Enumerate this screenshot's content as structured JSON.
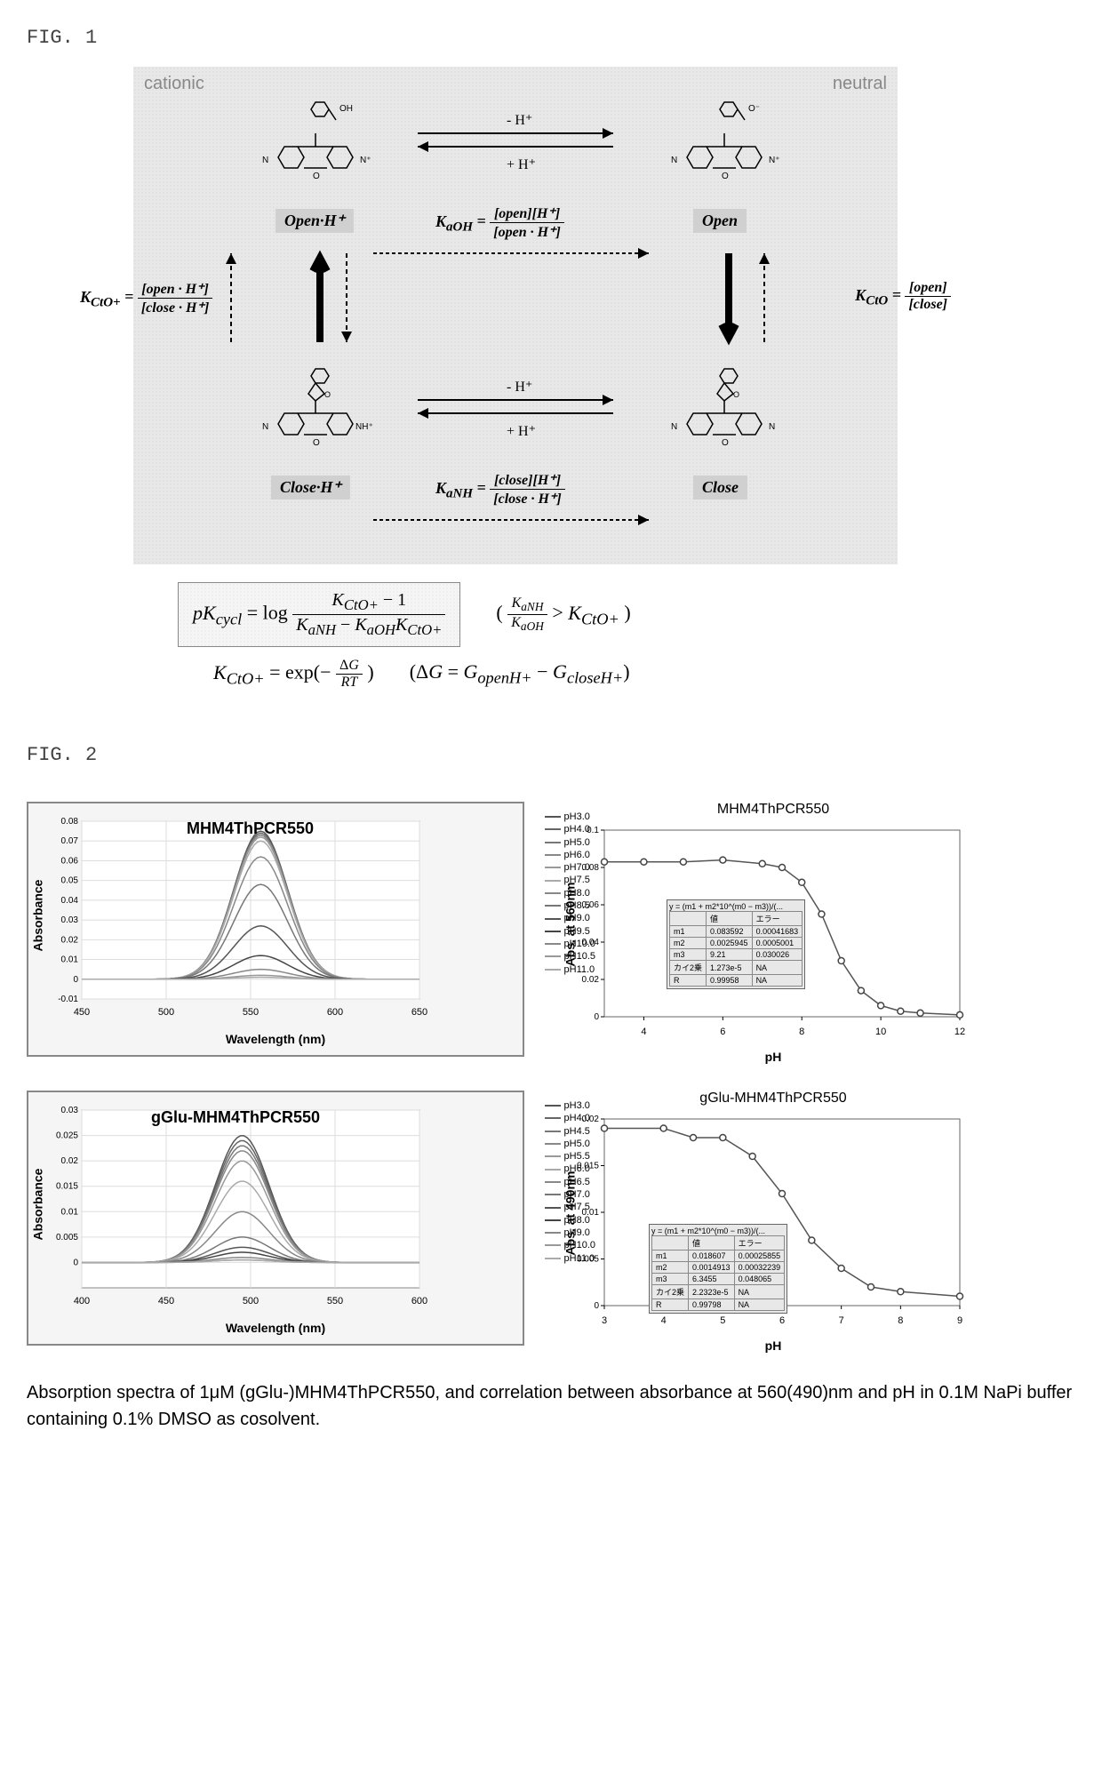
{
  "fig1": {
    "label": "FIG. 1",
    "corner_labels": {
      "left": "cationic",
      "right": "neutral"
    },
    "states": {
      "open_h": "Open·H⁺",
      "open": "Open",
      "close_h": "Close·H⁺",
      "close": "Close"
    },
    "arrows": {
      "top_forward": "- H⁺",
      "top_back": "+ H⁺",
      "bottom_forward": "- H⁺",
      "bottom_back": "+ H⁺"
    },
    "k_labels": {
      "kcto_plus": "K_{CtO+} =",
      "kcto_plus_num": "[open · H⁺]",
      "kcto_plus_den": "[close · H⁺]",
      "kcto": "K_{CtO} =",
      "kcto_num": "[open]",
      "kcto_den": "[close]",
      "kaoh": "K_{aOH} =",
      "kaoh_num": "[open][H⁺]",
      "kaoh_den": "[open · H⁺]",
      "kanh": "K_{aNH} =",
      "kanh_num": "[close][H⁺]",
      "kanh_den": "[close · H⁺]"
    },
    "equations": {
      "pkcycl": "pK_{cycl} = log",
      "pkcycl_num": "K_{CtO+} − 1",
      "pkcycl_den": "K_{aNH} − K_{aOH}K_{CtO+}",
      "cond_num": "K_{aNH}",
      "cond_den": "K_{aOH}",
      "cond_right": "> K_{CtO+}",
      "kcto_exp": "K_{CtO+} = exp(−",
      "kcto_exp_num": "ΔG",
      "kcto_exp_den": "RT",
      "kcto_exp_close": ")",
      "delta_g": "(ΔG = G_{openH+} − G_{closeH+})"
    }
  },
  "fig2": {
    "label": "FIG. 2",
    "chart1": {
      "title": "MHM4ThPCR550",
      "xlabel": "Wavelength (nm)",
      "ylabel": "Absorbance",
      "xlim": [
        450,
        650
      ],
      "ylim": [
        -0.01,
        0.08
      ],
      "xticks": [
        450,
        500,
        550,
        600,
        650
      ],
      "yticks": [
        -0.01,
        0,
        0.01,
        0.02,
        0.03,
        0.04,
        0.05,
        0.06,
        0.07,
        0.08
      ],
      "legend": [
        "pH3.0",
        "pH4.0",
        "pH5.0",
        "pH6.0",
        "pH7.0",
        "pH7.5",
        "pH8.0",
        "pH8.5",
        "pH9.0",
        "pH9.5",
        "pH10.0",
        "pH10.5",
        "pH11.0"
      ],
      "curves_peak_x": 556,
      "curves_peaks": [
        0.075,
        0.074,
        0.073,
        0.073,
        0.072,
        0.07,
        0.062,
        0.048,
        0.027,
        0.012,
        0.005,
        0.002,
        0.001
      ],
      "line_colors": [
        "#555",
        "#666",
        "#777",
        "#888",
        "#999",
        "#aaa",
        "#888",
        "#777",
        "#555",
        "#444",
        "#888",
        "#999",
        "#aaa"
      ]
    },
    "chart2": {
      "title": "MHM4ThPCR550",
      "xlabel": "pH",
      "ylabel": "Abs. at 560nm",
      "xlim": [
        3,
        12
      ],
      "ylim": [
        0,
        0.1
      ],
      "xticks": [
        4,
        6,
        8,
        10,
        12
      ],
      "yticks": [
        0,
        0.02,
        0.04,
        0.06,
        0.08,
        0.1
      ],
      "points": [
        [
          3.0,
          0.083
        ],
        [
          4.0,
          0.083
        ],
        [
          5.0,
          0.083
        ],
        [
          6.0,
          0.084
        ],
        [
          7.0,
          0.082
        ],
        [
          7.5,
          0.08
        ],
        [
          8.0,
          0.072
        ],
        [
          8.5,
          0.055
        ],
        [
          9.0,
          0.03
        ],
        [
          9.5,
          0.014
        ],
        [
          10.0,
          0.006
        ],
        [
          10.5,
          0.003
        ],
        [
          11.0,
          0.002
        ],
        [
          12.0,
          0.001
        ]
      ],
      "fit_formula": "y = (m1 + m2*10^(m0 − m3))/(...",
      "fit_table": [
        [
          "",
          "値",
          "エラー"
        ],
        [
          "m1",
          "0.083592",
          "0.00041683"
        ],
        [
          "m2",
          "0.0025945",
          "0.0005001"
        ],
        [
          "m3",
          "9.21",
          "0.030026"
        ],
        [
          "カイ2乗",
          "1.273e-5",
          "NA"
        ],
        [
          "R",
          "0.99958",
          "NA"
        ]
      ]
    },
    "chart3": {
      "title": "gGlu-MHM4ThPCR550",
      "xlabel": "Wavelength (nm)",
      "ylabel": "Absorbance",
      "xlim": [
        400,
        600
      ],
      "ylim": [
        -0.005,
        0.03
      ],
      "xticks": [
        400,
        450,
        500,
        550,
        600
      ],
      "yticks": [
        0,
        0.005,
        0.01,
        0.015,
        0.02,
        0.025,
        0.03
      ],
      "legend": [
        "pH3.0",
        "pH4.0",
        "pH4.5",
        "pH5.0",
        "pH5.5",
        "pH6.0",
        "pH6.5",
        "pH7.0",
        "pH7.5",
        "pH8.0",
        "pH9.0",
        "pH10.0",
        "pH11.0"
      ],
      "curves_peak_x": 495,
      "curves_peaks": [
        0.025,
        0.024,
        0.023,
        0.022,
        0.02,
        0.016,
        0.01,
        0.005,
        0.003,
        0.002,
        0.001,
        0.0005,
        0.0005
      ],
      "line_colors": [
        "#555",
        "#666",
        "#777",
        "#888",
        "#999",
        "#aaa",
        "#888",
        "#777",
        "#555",
        "#444",
        "#888",
        "#999",
        "#aaa"
      ]
    },
    "chart4": {
      "title": "gGlu-MHM4ThPCR550",
      "xlabel": "pH",
      "ylabel": "Abs. at 490nm",
      "xlim": [
        3,
        9
      ],
      "ylim": [
        0,
        0.02
      ],
      "xticks": [
        3,
        4,
        5,
        6,
        7,
        8,
        9
      ],
      "yticks": [
        0,
        0.005,
        0.01,
        0.015,
        0.02
      ],
      "points": [
        [
          3.0,
          0.019
        ],
        [
          4.0,
          0.019
        ],
        [
          4.5,
          0.018
        ],
        [
          5.0,
          0.018
        ],
        [
          5.5,
          0.016
        ],
        [
          6.0,
          0.012
        ],
        [
          6.5,
          0.007
        ],
        [
          7.0,
          0.004
        ],
        [
          7.5,
          0.002
        ],
        [
          8.0,
          0.0015
        ],
        [
          9.0,
          0.001
        ]
      ],
      "fit_formula": "y = (m1 + m2*10^(m0 − m3))/(...",
      "fit_table": [
        [
          "",
          "値",
          "エラー"
        ],
        [
          "m1",
          "0.018607",
          "0.00025855"
        ],
        [
          "m2",
          "0.0014913",
          "0.00032239"
        ],
        [
          "m3",
          "6.3455",
          "0.048065"
        ],
        [
          "カイ2乗",
          "2.2323e-5",
          "NA"
        ],
        [
          "R",
          "0.99798",
          "NA"
        ]
      ]
    },
    "caption": "Absorption spectra of 1μM (gGlu-)MHM4ThPCR550, and correlation between absorbance at 560(490)nm and pH in 0.1M NaPi buffer containing 0.1% DMSO as cosolvent."
  },
  "colors": {
    "bg": "#ffffff",
    "scheme_bg": "#e8e8e8",
    "frame": "#888888",
    "text": "#000000"
  }
}
